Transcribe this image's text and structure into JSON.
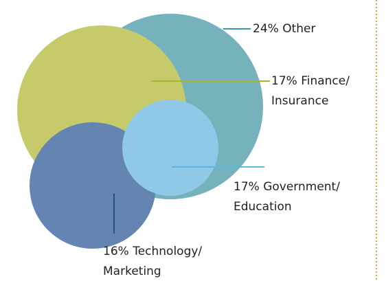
{
  "chart_data": {
    "type": "bubble",
    "categories": [
      [
        "Other"
      ],
      [
        "Finance/",
        "Insurance"
      ],
      [
        "Government/",
        "Education"
      ],
      [
        "Technology/",
        "Marketing"
      ]
    ],
    "values": [
      24,
      17,
      17,
      16
    ],
    "value_labels": [
      "24%",
      "17%",
      "17%",
      "16%"
    ],
    "colors": [
      "#75b2bb",
      "#c7ca6a",
      "#90c9e8",
      "#6484b2"
    ],
    "line_colors": [
      "#3a9aa6",
      "#a9b52a",
      "#5ab8e6",
      "#2d4f7e"
    ]
  }
}
